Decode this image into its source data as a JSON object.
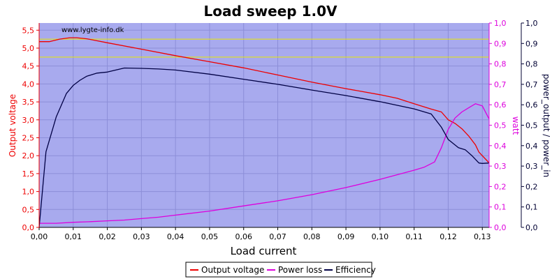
{
  "chart_data": {
    "type": "line",
    "title": "Load sweep 1.0V",
    "watermark": "www.lygte-info.dk",
    "xlabel": "Load current",
    "xlim": [
      0,
      0.132
    ],
    "xticks": [
      "0,00",
      "0,01",
      "0,02",
      "0,03",
      "0,04",
      "0,05",
      "0,06",
      "0,07",
      "0,08",
      "0,09",
      "0,10",
      "0,11",
      "0,12",
      "0,13"
    ],
    "xtick_values": [
      0,
      0.01,
      0.02,
      0.03,
      0.04,
      0.05,
      0.06,
      0.07,
      0.08,
      0.09,
      0.1,
      0.11,
      0.12,
      0.13
    ],
    "grid": true,
    "plot_background": "#a8aaee",
    "reference_lines": {
      "values": [
        5.25,
        4.75
      ],
      "axis": "left",
      "color": "#e8e800"
    },
    "axes": {
      "left": {
        "label": "Output voltage",
        "color": "#ee0000",
        "ylim": [
          0,
          5.7
        ],
        "ticks": [
          "0,0",
          "0,5",
          "1,0",
          "1,5",
          "2,0",
          "2,5",
          "3,0",
          "3,5",
          "4,0",
          "4,5",
          "5,0",
          "5,5"
        ],
        "tick_values": [
          0,
          0.5,
          1.0,
          1.5,
          2.0,
          2.5,
          3.0,
          3.5,
          4.0,
          4.5,
          5.0,
          5.5
        ]
      },
      "right1": {
        "label": "watt",
        "color": "#dd00dd",
        "ylim": [
          0,
          1.0
        ],
        "ticks": [
          "0,0",
          "0,1",
          "0,2",
          "0,3",
          "0,4",
          "0,5",
          "0,6",
          "0,7",
          "0,8",
          "0,9",
          "1,0"
        ],
        "tick_values": [
          0,
          0.1,
          0.2,
          0.3,
          0.4,
          0.5,
          0.6,
          0.7,
          0.8,
          0.9,
          1.0
        ]
      },
      "right2": {
        "label": "power_output / power_in",
        "color": "#000033",
        "ylim": [
          0,
          1.0
        ],
        "ticks": [
          "0,0",
          "0,1",
          "0,2",
          "0,3",
          "0,4",
          "0,5",
          "0,6",
          "0,7",
          "0,8",
          "0,9",
          "1,0"
        ],
        "tick_values": [
          0,
          0.1,
          0.2,
          0.3,
          0.4,
          0.5,
          0.6,
          0.7,
          0.8,
          0.9,
          1.0
        ]
      }
    },
    "legend_position": "bottom-center",
    "series": [
      {
        "name": "Output voltage",
        "axis": "left",
        "color": "#ee0000",
        "x": [
          0,
          0.003,
          0.006,
          0.009,
          0.011,
          0.014,
          0.02,
          0.03,
          0.04,
          0.05,
          0.06,
          0.07,
          0.08,
          0.09,
          0.1,
          0.105,
          0.11,
          0.115,
          0.118,
          0.12,
          0.122,
          0.124,
          0.126,
          0.128,
          0.129,
          0.13,
          0.132
        ],
        "y": [
          5.18,
          5.18,
          5.25,
          5.29,
          5.29,
          5.26,
          5.15,
          4.97,
          4.79,
          4.62,
          4.45,
          4.25,
          4.05,
          3.87,
          3.7,
          3.6,
          3.45,
          3.3,
          3.22,
          3.0,
          2.9,
          2.75,
          2.55,
          2.3,
          2.1,
          2.0,
          1.8
        ]
      },
      {
        "name": "Power loss",
        "axis": "right1",
        "color": "#dd00dd",
        "x": [
          0,
          0.005,
          0.01,
          0.015,
          0.02,
          0.025,
          0.03,
          0.035,
          0.04,
          0.05,
          0.06,
          0.07,
          0.08,
          0.09,
          0.1,
          0.11,
          0.113,
          0.116,
          0.118,
          0.12,
          0.122,
          0.124,
          0.126,
          0.128,
          0.13,
          0.132
        ],
        "y": [
          0.02,
          0.02,
          0.025,
          0.028,
          0.032,
          0.036,
          0.043,
          0.05,
          0.06,
          0.08,
          0.105,
          0.13,
          0.16,
          0.195,
          0.235,
          0.28,
          0.295,
          0.32,
          0.39,
          0.48,
          0.535,
          0.565,
          0.585,
          0.605,
          0.595,
          0.53
        ]
      },
      {
        "name": "Efficiency",
        "axis": "right2",
        "color": "#000044",
        "x": [
          0,
          0.002,
          0.005,
          0.008,
          0.01,
          0.012,
          0.014,
          0.017,
          0.02,
          0.025,
          0.03,
          0.035,
          0.04,
          0.05,
          0.06,
          0.07,
          0.08,
          0.09,
          0.1,
          0.11,
          0.115,
          0.118,
          0.12,
          0.123,
          0.125,
          0.127,
          0.129,
          0.13,
          0.132
        ],
        "y": [
          0.0,
          0.37,
          0.54,
          0.655,
          0.695,
          0.72,
          0.74,
          0.755,
          0.76,
          0.78,
          0.778,
          0.775,
          0.77,
          0.75,
          0.725,
          0.7,
          0.672,
          0.645,
          0.615,
          0.58,
          0.555,
          0.49,
          0.43,
          0.39,
          0.38,
          0.35,
          0.315,
          0.313,
          0.315
        ]
      }
    ]
  }
}
